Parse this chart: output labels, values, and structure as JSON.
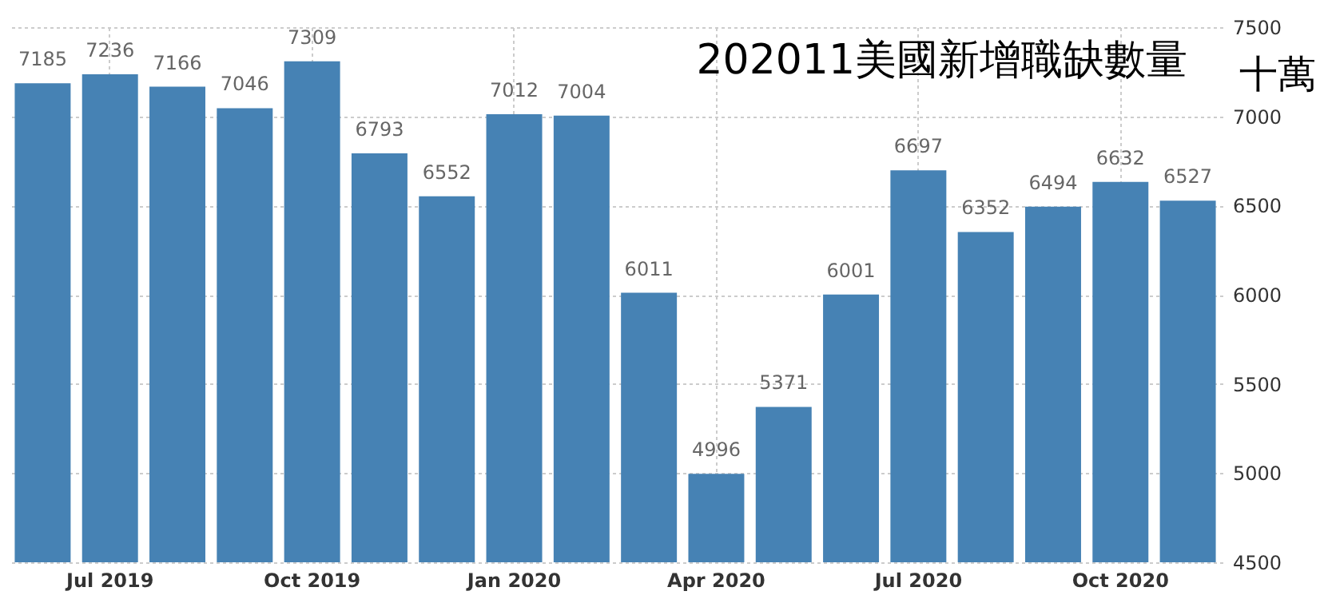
{
  "chart_data": {
    "type": "bar",
    "title": "202011美國新增職缺數量",
    "ylabel": "十萬",
    "categories": [
      null,
      "Jul 2019",
      null,
      null,
      "Oct 2019",
      null,
      null,
      "Jan 2020",
      null,
      null,
      "Apr 2020",
      null,
      null,
      "Jul 2020",
      null,
      null,
      "Oct 2020",
      null
    ],
    "values": [
      7185,
      7236,
      7166,
      7046,
      7309,
      6793,
      6552,
      7012,
      7004,
      6011,
      4996,
      5371,
      6001,
      6697,
      6352,
      6494,
      6632,
      6527
    ],
    "color": "#4682b4",
    "ylim": [
      4500,
      7500
    ],
    "yticks": [
      4500,
      5000,
      5500,
      6000,
      6500,
      7000,
      7500
    ],
    "grid": true,
    "data_labels": true
  }
}
